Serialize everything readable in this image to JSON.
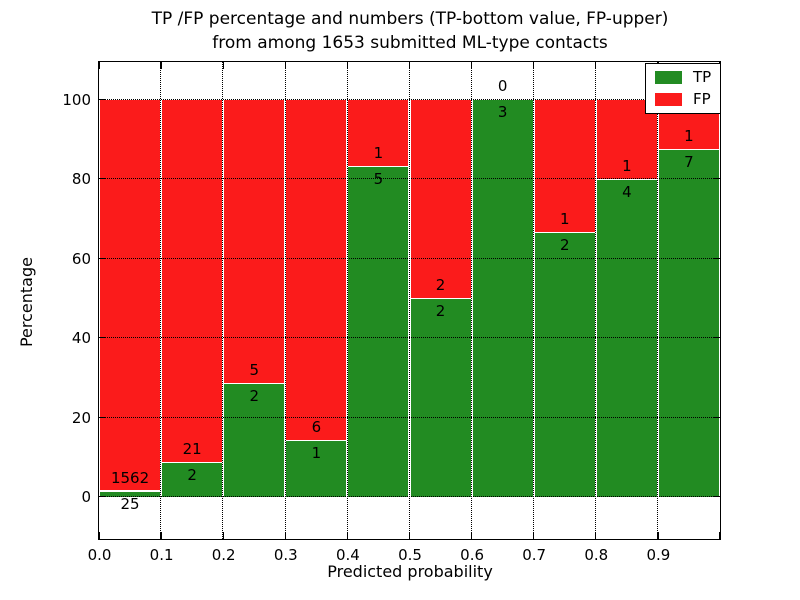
{
  "header": {
    "title_line1": "TP /FP percentage and numbers (TP-bottom value, FP-upper)",
    "title_line2": "from among 1653 submitted ML-type contacts"
  },
  "chart_data": {
    "type": "bar",
    "stacked": true,
    "normalized_to_percent": true,
    "title": "TP /FP percentage and numbers (TP-bottom value, FP-upper)\nfrom among 1653 submitted ML-type contacts",
    "xlabel": "Predicted probability",
    "ylabel": "Percentage",
    "xlim": [
      0.0,
      1.0
    ],
    "ylim": [
      -10.5,
      109.5
    ],
    "x_tick_values": [
      0.0,
      0.1,
      0.2,
      0.3,
      0.4,
      0.5,
      0.6,
      0.7,
      0.8,
      0.9
    ],
    "x_tick_labels": [
      "0.0",
      "0.1",
      "0.2",
      "0.3",
      "0.4",
      "0.5",
      "0.6",
      "0.7",
      "0.8",
      "0.9"
    ],
    "y_tick_values": [
      0,
      20,
      40,
      60,
      80,
      100
    ],
    "y_tick_labels": [
      "0",
      "20",
      "40",
      "60",
      "80",
      "100"
    ],
    "bin_edges": [
      0.0,
      0.1,
      0.2,
      0.3,
      0.4,
      0.5,
      0.6,
      0.7,
      0.8,
      0.9,
      1.0
    ],
    "grid": "dotted black, drawn above bars",
    "bar_edge_color": "#ffffff",
    "legend_position": "upper right",
    "total_contacts": 1653,
    "series": [
      {
        "name": "TP",
        "color": "#228b22",
        "counts": [
          25,
          2,
          2,
          1,
          5,
          2,
          3,
          2,
          4,
          7
        ],
        "percent_heights": [
          1.58,
          8.7,
          28.57,
          14.29,
          83.33,
          50.0,
          100.0,
          66.67,
          80.0,
          87.5
        ]
      },
      {
        "name": "FP",
        "color": "#fb1b1b",
        "counts": [
          1562,
          21,
          5,
          6,
          1,
          2,
          0,
          1,
          1,
          1
        ],
        "percent_heights": [
          98.42,
          91.3,
          71.43,
          85.71,
          16.67,
          50.0,
          0.0,
          33.33,
          20.0,
          12.5
        ]
      }
    ]
  }
}
